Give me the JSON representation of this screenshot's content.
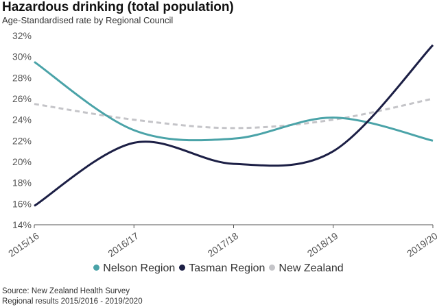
{
  "header": {
    "title": "Hazardous drinking (total population)",
    "subtitle": "Age-Standardised rate by Regional Council"
  },
  "footer": {
    "source": "Source: New Zealand Health Survey",
    "note": "Regional results 2015/2016 - 2019/2020"
  },
  "chart_data": {
    "type": "line",
    "title": "Hazardous drinking (total population)",
    "subtitle": "Age-Standardised rate by Regional Council",
    "categories": [
      "2015/16",
      "2016/17",
      "2017/18",
      "2018/19",
      "2019/20"
    ],
    "y_ticks": [
      "14%",
      "16%",
      "18%",
      "20%",
      "22%",
      "24%",
      "26%",
      "28%",
      "30%",
      "32%"
    ],
    "ylim": [
      14,
      32
    ],
    "grid": false,
    "smooth": true,
    "legend_position": "bottom",
    "series": [
      {
        "name": "Nelson Region",
        "values": [
          29.5,
          23.0,
          22.2,
          24.2,
          22.0
        ],
        "color": "#4aa3a8",
        "dashed": false
      },
      {
        "name": "Tasman Region",
        "values": [
          15.8,
          21.8,
          19.8,
          21.0,
          31.1
        ],
        "color": "#1c1f45",
        "dashed": false
      },
      {
        "name": "New Zealand",
        "values": [
          25.5,
          24.0,
          23.2,
          24.0,
          26.0
        ],
        "color": "#c4c4c8",
        "dashed": true
      }
    ]
  }
}
